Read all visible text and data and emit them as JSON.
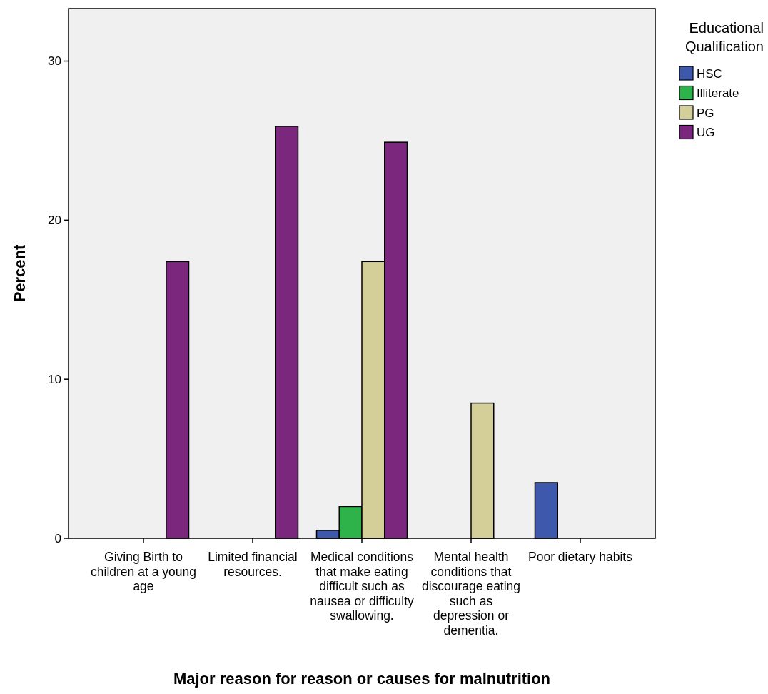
{
  "chart_data": {
    "type": "bar",
    "xlabel": "Major reason for reason or causes for malnutrition",
    "ylabel": "Percent",
    "legend_title": "Educational Qualification",
    "legend": "right",
    "categories": [
      "Giving Birth to children at a young age",
      "Limited financial resources.",
      "Medical conditions that make eating difficult such as nausea or difficulty swallowing.",
      "Mental health conditions that discourage eating such as depression or dementia.",
      "Poor dietary habits"
    ],
    "series": [
      {
        "name": "HSC",
        "color": "#3e58ac",
        "values": [
          null,
          null,
          0.5,
          null,
          3.5
        ]
      },
      {
        "name": "Illiterate",
        "color": "#2eb24a",
        "values": [
          null,
          null,
          2.0,
          null,
          null
        ]
      },
      {
        "name": "PG",
        "color": "#d4cf98",
        "values": [
          null,
          null,
          17.4,
          8.5,
          null
        ]
      },
      {
        "name": "UG",
        "color": "#7b277d",
        "values": [
          17.4,
          25.9,
          24.9,
          null,
          null
        ]
      }
    ],
    "ylim": [
      0,
      33.3
    ],
    "yticks": [
      0,
      10,
      20,
      30
    ]
  }
}
